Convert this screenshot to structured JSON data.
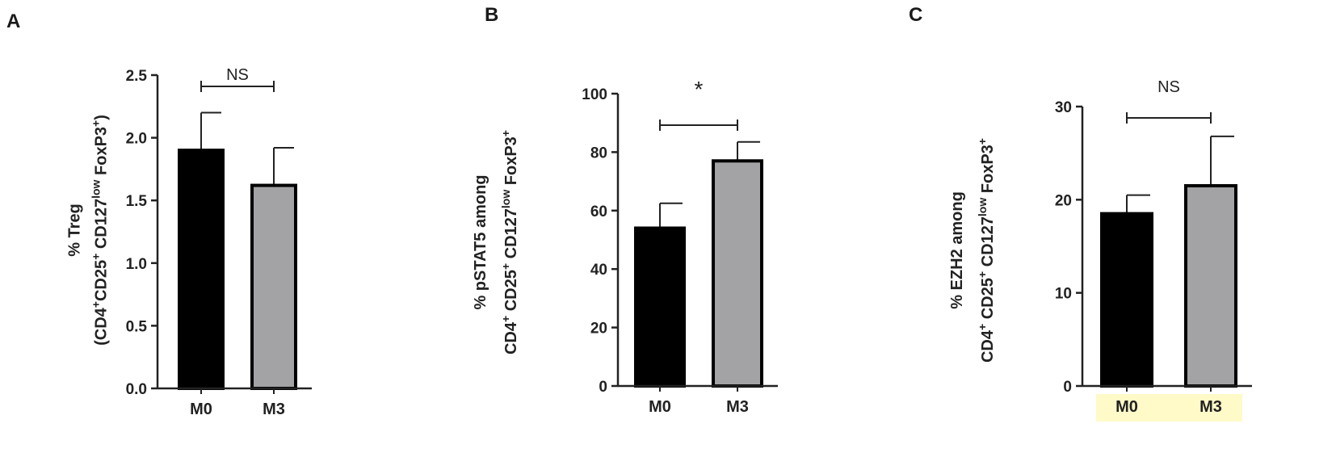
{
  "chart_data": [
    {
      "type": "bar",
      "panel_letter": "A",
      "categories": [
        "M0",
        "M3"
      ],
      "values": [
        1.9,
        1.62
      ],
      "errors": [
        0.3,
        0.3
      ],
      "bar_colors": [
        "#000000",
        "#a3a3a6"
      ],
      "ylabel_lines": [
        [
          {
            "t": "% Treg"
          }
        ],
        [
          {
            "t": "(CD4"
          },
          {
            "t": "+",
            "sup": true
          },
          {
            "t": "CD25"
          },
          {
            "t": "+",
            "sup": true
          },
          {
            "t": " CD127"
          },
          {
            "t": "low",
            "sup": true
          },
          {
            "t": " FoxP3"
          },
          {
            "t": "+",
            "sup": true
          },
          {
            "t": ")"
          }
        ]
      ],
      "ylim": [
        0,
        2.5
      ],
      "yticks": [
        0.0,
        0.5,
        1.0,
        1.5,
        2.0,
        2.5
      ],
      "ytick_labels": [
        "0.0",
        "0.5",
        "1.0",
        "1.5",
        "2.0",
        "2.5"
      ],
      "significance": "NS",
      "highlight_categories": false
    },
    {
      "type": "bar",
      "panel_letter": "B",
      "categories": [
        "M0",
        "M3"
      ],
      "values": [
        54,
        77
      ],
      "errors": [
        8.5,
        6.5
      ],
      "bar_colors": [
        "#000000",
        "#a3a3a6"
      ],
      "ylabel_lines": [
        [
          {
            "t": "% "
          },
          {
            "t": "pSTAT5 "
          },
          {
            "t": "among"
          }
        ],
        [
          {
            "t": "CD4"
          },
          {
            "t": "+",
            "sup": true
          },
          {
            "t": " CD25"
          },
          {
            "t": "+",
            "sup": true
          },
          {
            "t": " CD127"
          },
          {
            "t": "low",
            "sup": true
          },
          {
            "t": " FoxP3"
          },
          {
            "t": "+",
            "sup": true
          }
        ]
      ],
      "ylim": [
        0,
        100
      ],
      "yticks": [
        0,
        20,
        40,
        60,
        80,
        100
      ],
      "ytick_labels": [
        "0",
        "20",
        "40",
        "60",
        "80",
        "100"
      ],
      "significance": "*",
      "highlight_categories": false
    },
    {
      "type": "bar",
      "panel_letter": "C",
      "categories": [
        "M0",
        "M3"
      ],
      "values": [
        18.5,
        21.5
      ],
      "errors": [
        2.0,
        5.3
      ],
      "bar_colors": [
        "#000000",
        "#a3a3a6"
      ],
      "ylabel_lines": [
        [
          {
            "t": "% EZH2 "
          },
          {
            "t": "among"
          }
        ],
        [
          {
            "t": "CD4"
          },
          {
            "t": "+",
            "sup": true
          },
          {
            "t": " CD25"
          },
          {
            "t": "+",
            "sup": true
          },
          {
            "t": " CD127"
          },
          {
            "t": "low",
            "sup": true
          },
          {
            "t": " FoxP3"
          },
          {
            "t": "+",
            "sup": true
          }
        ]
      ],
      "ylim": [
        0,
        30
      ],
      "yticks": [
        0,
        10,
        20,
        30
      ],
      "ytick_labels": [
        "0",
        "10",
        "20",
        "30"
      ],
      "significance": "NS",
      "highlight_categories": true,
      "highlight_color": "#fffac8"
    }
  ]
}
